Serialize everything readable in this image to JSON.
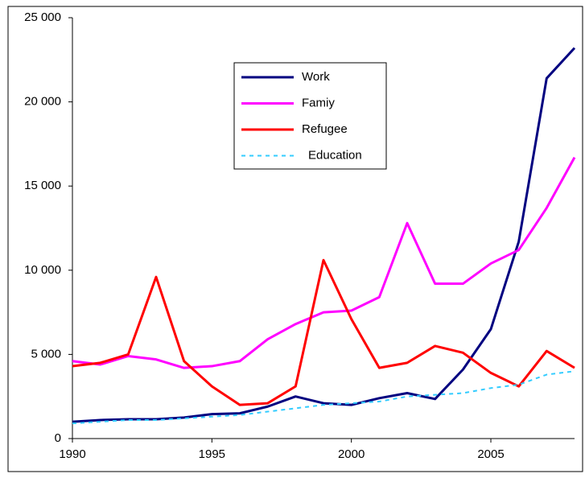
{
  "chart_data": {
    "type": "line",
    "x": [
      1990,
      1991,
      1992,
      1993,
      1994,
      1995,
      1996,
      1997,
      1998,
      1999,
      2000,
      2001,
      2002,
      2003,
      2004,
      2005,
      2006,
      2007,
      2008
    ],
    "series": [
      {
        "name": "Work",
        "color": "#000080",
        "values": [
          1000,
          1100,
          1150,
          1150,
          1250,
          1450,
          1500,
          1900,
          2500,
          2100,
          2000,
          2400,
          2700,
          2350,
          4100,
          6500,
          11700,
          21400,
          23200
        ]
      },
      {
        "name": "Famiy",
        "color": "#ff00ff",
        "values": [
          4600,
          4400,
          4900,
          4700,
          4200,
          4300,
          4600,
          5900,
          6800,
          7500,
          7600,
          8400,
          12800,
          9200,
          9200,
          10400,
          11200,
          13700,
          16700
        ]
      },
      {
        "name": "Refugee",
        "color": "#ff0000",
        "values": [
          4300,
          4500,
          5000,
          9600,
          4600,
          3100,
          2000,
          2100,
          3100,
          10600,
          7100,
          4200,
          4500,
          5500,
          5100,
          3900,
          3100,
          5200,
          4200
        ]
      },
      {
        "name": "Education",
        "color": "#33ccff",
        "dashed": true,
        "values": [
          900,
          1000,
          1100,
          1100,
          1200,
          1300,
          1400,
          1600,
          1800,
          2000,
          2100,
          2200,
          2500,
          2600,
          2700,
          3000,
          3200,
          3800,
          4000
        ]
      }
    ],
    "xlim": [
      1990,
      2008
    ],
    "xticks": [
      1990,
      1995,
      2000,
      2005
    ],
    "ylim": [
      0,
      25000
    ],
    "yticks": [
      0,
      {
        "value": 5000,
        "label": "5 000"
      },
      {
        "value": 10000,
        "label": "10 000"
      },
      {
        "value": 15000,
        "label": "15 000"
      },
      {
        "value": 20000,
        "label": "20 000"
      },
      {
        "value": 25000,
        "label": "25 000"
      }
    ],
    "grid": false
  }
}
